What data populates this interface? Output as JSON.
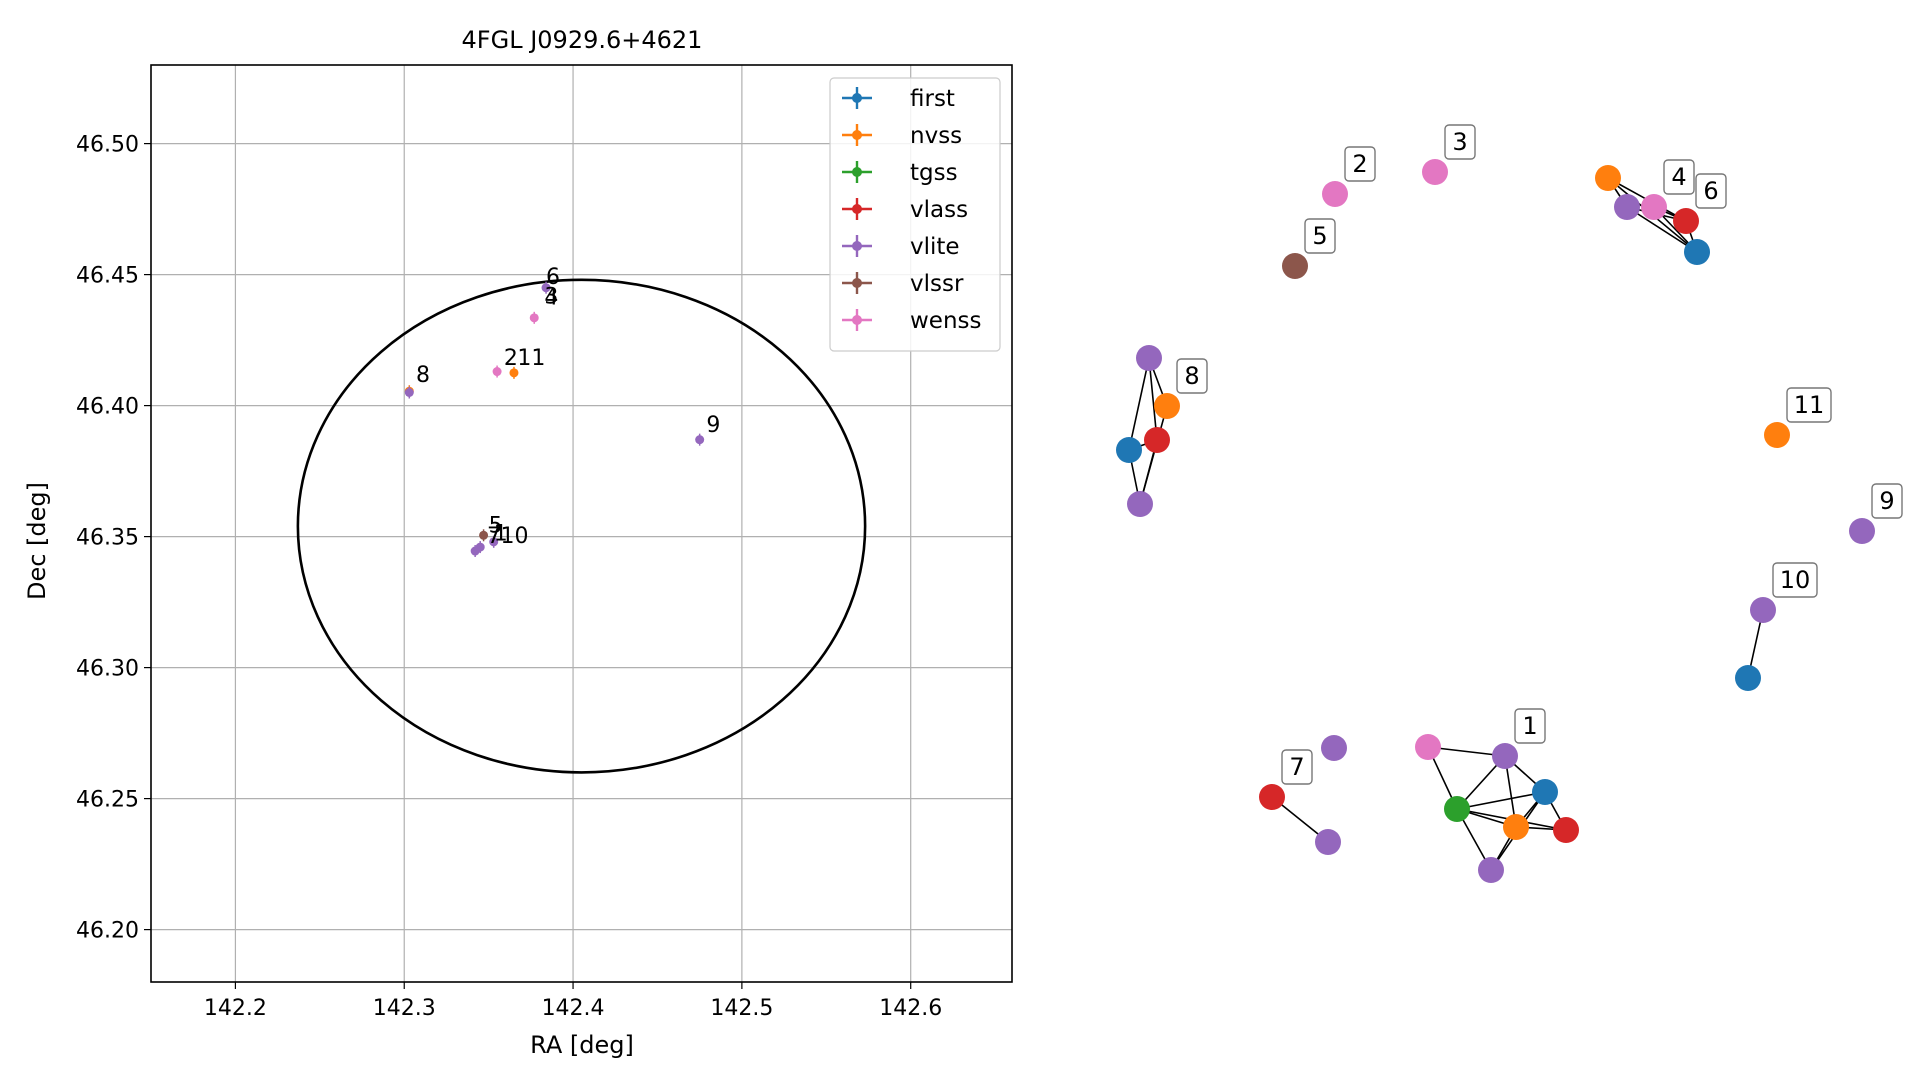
{
  "chart_data": [
    {
      "type": "scatter",
      "title": "4FGL J0929.6+4621",
      "xlabel": "RA [deg]",
      "ylabel": "Dec [deg]",
      "xlim": [
        142.15,
        142.66
      ],
      "ylim": [
        46.18,
        46.53
      ],
      "xticks": [
        142.2,
        142.3,
        142.4,
        142.5,
        142.6
      ],
      "yticks": [
        46.2,
        46.25,
        46.3,
        46.35,
        46.4,
        46.45,
        46.5
      ],
      "grid": true,
      "legend_position": "top-right",
      "colors": {
        "first": "#1f77b4",
        "nvss": "#ff7f0e",
        "tgss": "#2ca02c",
        "vlass": "#d62728",
        "vlite": "#9467bd",
        "vlssr": "#8c564b",
        "wenss": "#e377c2"
      },
      "series": [
        {
          "name": "first",
          "points": []
        },
        {
          "name": "nvss",
          "points": [
            {
              "x": 142.365,
              "y": 46.4125
            },
            {
              "x": 142.303,
              "y": 46.4055
            }
          ]
        },
        {
          "name": "tgss",
          "points": []
        },
        {
          "name": "vlass",
          "points": []
        },
        {
          "name": "vlite",
          "points": [
            {
              "x": 142.303,
              "y": 46.405
            },
            {
              "x": 142.384,
              "y": 46.445
            },
            {
              "x": 142.475,
              "y": 46.387
            },
            {
              "x": 142.353,
              "y": 46.348
            },
            {
              "x": 142.345,
              "y": 46.346
            },
            {
              "x": 142.342,
              "y": 46.3445
            }
          ]
        },
        {
          "name": "vlssr",
          "points": [
            {
              "x": 142.347,
              "y": 46.3505
            }
          ]
        },
        {
          "name": "wenss",
          "points": [
            {
              "x": 142.355,
              "y": 46.413
            },
            {
              "x": 142.377,
              "y": 46.4335
            }
          ]
        }
      ],
      "labels": [
        {
          "text": "6",
          "x": 142.384,
          "y": 46.4465
        },
        {
          "text": "3",
          "x": 142.383,
          "y": 46.439
        },
        {
          "text": "4",
          "x": 142.383,
          "y": 46.4385
        },
        {
          "text": "2",
          "x": 142.359,
          "y": 46.4155
        },
        {
          "text": "11",
          "x": 142.367,
          "y": 46.4155
        },
        {
          "text": "8",
          "x": 142.307,
          "y": 46.409
        },
        {
          "text": "9",
          "x": 142.479,
          "y": 46.39
        },
        {
          "text": "5",
          "x": 142.35,
          "y": 46.3515
        },
        {
          "text": "7",
          "x": 142.349,
          "y": 46.3475
        },
        {
          "text": "1",
          "x": 142.353,
          "y": 46.3485
        },
        {
          "text": "10",
          "x": 142.357,
          "y": 46.3475
        }
      ],
      "ellipse": {
        "center_x": 142.405,
        "center_y": 46.354,
        "semi_axis_x": 0.168,
        "semi_axis_y": 0.094
      }
    },
    {
      "type": "network",
      "nodes": [
        {
          "id": "n1",
          "survey": "wenss",
          "label": "2"
        },
        {
          "id": "n2",
          "survey": "wenss",
          "label": "3"
        },
        {
          "id": "n3",
          "survey": "vlssr",
          "label": "5"
        },
        {
          "id": "n4",
          "survey": "nvss",
          "label": ""
        },
        {
          "id": "n5",
          "survey": "vlite",
          "label": ""
        },
        {
          "id": "n6",
          "survey": "wenss",
          "label": "4"
        },
        {
          "id": "n7",
          "survey": "vlass",
          "label": "6"
        },
        {
          "id": "n8",
          "survey": "first",
          "label": ""
        },
        {
          "id": "n9",
          "survey": "vlite",
          "label": ""
        },
        {
          "id": "n10",
          "survey": "first",
          "label": ""
        },
        {
          "id": "n11",
          "survey": "vlass",
          "label": ""
        },
        {
          "id": "n12",
          "survey": "nvss",
          "label": "8"
        },
        {
          "id": "n13",
          "survey": "vlite",
          "label": ""
        },
        {
          "id": "n14",
          "survey": "nvss",
          "label": "11"
        },
        {
          "id": "n15",
          "survey": "vlite",
          "label": "9"
        },
        {
          "id": "n16",
          "survey": "vlite",
          "label": "10"
        },
        {
          "id": "n17",
          "survey": "first",
          "label": ""
        },
        {
          "id": "n18",
          "survey": "vlite",
          "label": ""
        },
        {
          "id": "n19",
          "survey": "wenss",
          "label": ""
        },
        {
          "id": "n20",
          "survey": "vlite",
          "label": "1"
        },
        {
          "id": "n21",
          "survey": "tgss",
          "label": ""
        },
        {
          "id": "n22",
          "survey": "first",
          "label": ""
        },
        {
          "id": "n23",
          "survey": "nvss",
          "label": ""
        },
        {
          "id": "n24",
          "survey": "vlass",
          "label": ""
        },
        {
          "id": "n25",
          "survey": "vlite",
          "label": ""
        },
        {
          "id": "n26",
          "survey": "vlass",
          "label": "7"
        },
        {
          "id": "n27",
          "survey": "vlite",
          "label": ""
        }
      ],
      "edges": [
        [
          "n4",
          "n5"
        ],
        [
          "n4",
          "n8"
        ],
        [
          "n4",
          "n7"
        ],
        [
          "n5",
          "n8"
        ],
        [
          "n5",
          "n7"
        ],
        [
          "n6",
          "n7"
        ],
        [
          "n6",
          "n8"
        ],
        [
          "n7",
          "n8"
        ],
        [
          "n9",
          "n10"
        ],
        [
          "n9",
          "n11"
        ],
        [
          "n9",
          "n12"
        ],
        [
          "n10",
          "n13"
        ],
        [
          "n11",
          "n13"
        ],
        [
          "n10",
          "n11"
        ],
        [
          "n12",
          "n13"
        ],
        [
          "n16",
          "n17"
        ],
        [
          "n19",
          "n20"
        ],
        [
          "n19",
          "n21"
        ],
        [
          "n20",
          "n21"
        ],
        [
          "n20",
          "n22"
        ],
        [
          "n20",
          "n23"
        ],
        [
          "n21",
          "n22"
        ],
        [
          "n21",
          "n23"
        ],
        [
          "n21",
          "n24"
        ],
        [
          "n21",
          "n25"
        ],
        [
          "n22",
          "n23"
        ],
        [
          "n22",
          "n24"
        ],
        [
          "n23",
          "n24"
        ],
        [
          "n23",
          "n25"
        ],
        [
          "n22",
          "n25"
        ],
        [
          "n26",
          "n27"
        ]
      ]
    }
  ]
}
